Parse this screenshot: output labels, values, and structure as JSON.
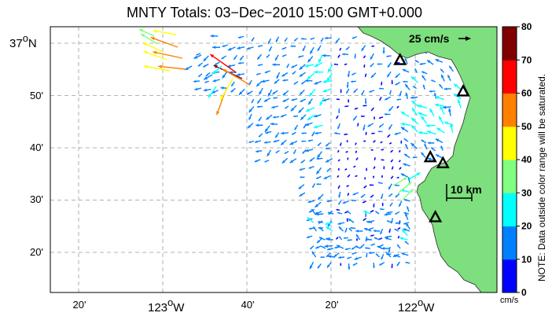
{
  "title": "MNTY Totals: 03−Dec−2010 15:00 GMT+0.000",
  "axes": {
    "latitude_labels": [
      {
        "deg": "37",
        "sup": "o",
        "hemi": "N",
        "lat": 37.0
      },
      {
        "min": "50'",
        "lat": 36.8333
      },
      {
        "min": "40'",
        "lat": 36.6667
      },
      {
        "min": "30'",
        "lat": 36.5
      },
      {
        "min": "20'",
        "lat": 36.3333
      }
    ],
    "longitude_labels": [
      {
        "min": "20'",
        "lon": -123.3333
      },
      {
        "deg": "123",
        "sup": "o",
        "hemi": "W",
        "lon": -123.0
      },
      {
        "min": "40'",
        "lon": -122.6667
      },
      {
        "min": "20'",
        "lon": -122.3333
      },
      {
        "deg": "122",
        "sup": "o",
        "hemi": "W",
        "lon": -122.0
      }
    ]
  },
  "reference_arrow": {
    "label": "25 cm/s",
    "speed_cm_s": 25
  },
  "scale_bar": {
    "label": "10 km"
  },
  "colorbar": {
    "ticks": [
      "0",
      "10",
      "20",
      "30",
      "40",
      "50",
      "60",
      "70",
      "80"
    ],
    "bands": [
      "#0000ff",
      "#0080ff",
      "#00ffff",
      "#80ff80",
      "#ffff00",
      "#ff8000",
      "#ff0000",
      "#800000"
    ],
    "unit": "cm/s",
    "note": "NOTE: Data outside color range will be saturated."
  },
  "colors": {
    "land": "#7ddf7d",
    "site_marker": "#000000",
    "grid": "#9a9a9a"
  },
  "stations": [
    {
      "name": "station-1",
      "lat": 36.946,
      "lon": -122.06
    },
    {
      "name": "station-2",
      "lat": 36.846,
      "lon": -121.81
    },
    {
      "name": "station-3",
      "lat": 36.636,
      "lon": -121.94
    },
    {
      "name": "station-4",
      "lat": 36.617,
      "lon": -121.89
    },
    {
      "name": "station-5",
      "lat": 36.445,
      "lon": -121.92
    }
  ]
}
